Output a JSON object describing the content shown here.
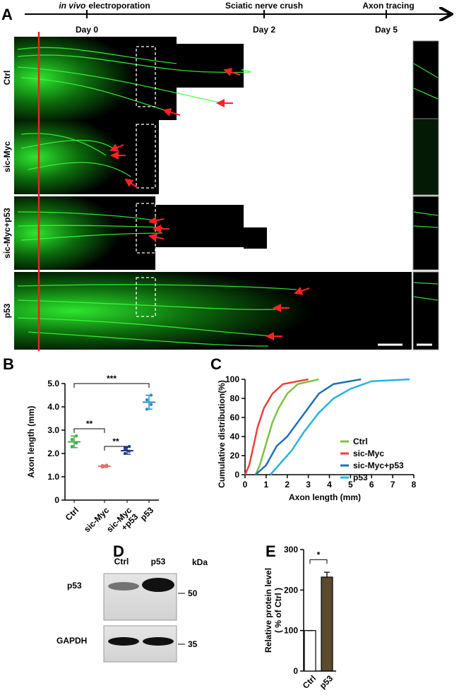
{
  "panel_labels": [
    "A",
    "B",
    "C",
    "D",
    "E"
  ],
  "timeline": {
    "events": [
      {
        "label_italic": "in vivo",
        "label": "electroporation",
        "day": "Day 0"
      },
      {
        "label": "Sciatic nerve crush",
        "day": "Day 2"
      },
      {
        "label": "Axon tracing",
        "day": "Day 5"
      }
    ]
  },
  "image_rows": [
    "Ctrl",
    "sic-Myc",
    "sic-Myc+p53",
    "p53"
  ],
  "chart_data": [
    {
      "type": "dotplot",
      "ylabel": "Axon length (mm)",
      "categories": [
        "Ctrl",
        "sic-Myc",
        "sic-Myc\n+p53",
        "p53"
      ],
      "values": [
        2.5,
        1.45,
        2.12,
        4.2
      ],
      "errors": [
        0.25,
        0.05,
        0.15,
        0.3
      ],
      "points": [
        [
          2.3,
          2.45,
          2.6,
          2.75
        ],
        [
          1.42,
          1.45,
          1.48,
          1.5
        ],
        [
          2.0,
          2.1,
          2.2,
          2.3
        ],
        [
          3.9,
          4.1,
          4.3,
          4.5
        ]
      ],
      "colors": [
        "#3cb24a",
        "#e0706a",
        "#1f3f8f",
        "#2a8fd6"
      ],
      "ylim": [
        0,
        5
      ],
      "yticks": [
        0,
        {
          "value": 1,
          "label": "1.0"
        },
        {
          "value": 2,
          "label": "2.0"
        },
        {
          "value": 3,
          "label": "3.0"
        },
        {
          "value": 4,
          "label": "4.0"
        },
        {
          "value": 5,
          "label": "5.0"
        }
      ],
      "annotations": [
        "**",
        "**",
        "***"
      ]
    },
    {
      "type": "line",
      "ylabel": "Cumulative distribution(%)",
      "xlabel": "Axon length (mm)",
      "series": [
        {
          "name": "Ctrl",
          "color": "#7dc242",
          "x": [
            0.5,
            0.7,
            0.9,
            1.1,
            1.3,
            1.6,
            2.0,
            2.5,
            3.5
          ],
          "values": [
            0,
            10,
            25,
            40,
            55,
            70,
            85,
            95,
            100
          ]
        },
        {
          "name": "sic-Myc",
          "color": "#e8423c",
          "x": [
            0,
            0.2,
            0.4,
            0.6,
            0.9,
            1.3,
            1.8,
            3.0
          ],
          "values": [
            0,
            10,
            30,
            50,
            70,
            85,
            95,
            100
          ]
        },
        {
          "name": "sic-Myc+p53",
          "color": "#1f6fba",
          "x": [
            0.5,
            1.0,
            1.5,
            2.0,
            2.5,
            3.0,
            3.5,
            4.2,
            5.5
          ],
          "values": [
            0,
            10,
            30,
            40,
            55,
            70,
            85,
            95,
            100
          ]
        },
        {
          "name": "p53",
          "color": "#26b5e0",
          "x": [
            1.2,
            1.6,
            2.2,
            2.8,
            3.5,
            4.2,
            5.0,
            6.0,
            7.8
          ],
          "values": [
            0,
            10,
            25,
            45,
            65,
            80,
            90,
            98,
            100
          ]
        }
      ],
      "xlim": [
        0,
        8
      ],
      "xticks": [
        0,
        1,
        2,
        3,
        4,
        5,
        6,
        7,
        8
      ],
      "ylim": [
        0,
        100
      ],
      "yticks": [
        0,
        20,
        40,
        60,
        80,
        100
      ]
    },
    {
      "type": "bar",
      "ylabel": [
        "Relative protein level",
        "( % of Ctrl )"
      ],
      "categories": [
        "Ctrl",
        "p53"
      ],
      "values": [
        100,
        232
      ],
      "errors": [
        0,
        12
      ],
      "colors": [
        "#ffffff",
        "#5b4a2b"
      ],
      "ylim": [
        0,
        300
      ],
      "yticks": [
        0,
        100,
        200,
        300
      ],
      "annotations": [
        "*"
      ]
    }
  ],
  "blot": {
    "lanes": [
      "Ctrl",
      "p53"
    ],
    "unit": "kDa",
    "bands": [
      "p53",
      "GAPDH"
    ],
    "markers": [
      50,
      35
    ]
  }
}
